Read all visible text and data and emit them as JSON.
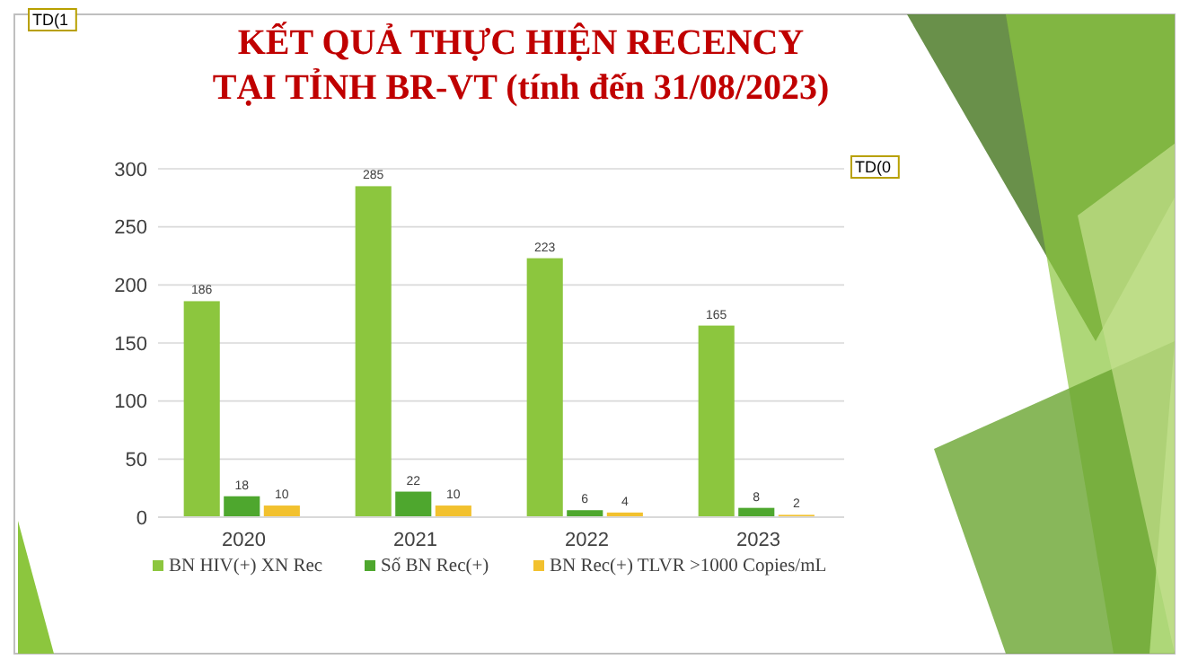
{
  "chart_data": {
    "type": "bar",
    "title": "KẾT QUẢ THỰC HIỆN RECENCY",
    "subtitle": "TẠI TỈNH BR-VT (tính đến 31/08/2023)",
    "categories": [
      "2020",
      "2021",
      "2022",
      "2023"
    ],
    "series": [
      {
        "name": "BN HIV(+) XN Rec",
        "color": "#8cc63e",
        "values": [
          186,
          285,
          223,
          165
        ]
      },
      {
        "name": "Số BN Rec(+)",
        "color": "#4ea72e",
        "values": [
          18,
          22,
          6,
          8
        ]
      },
      {
        "name": "BN Rec(+) TLVR >1000 Copies/mL",
        "color": "#f2c12e",
        "values": [
          10,
          10,
          4,
          2
        ]
      }
    ],
    "ylim": [
      0,
      300
    ],
    "yticks": [
      0,
      50,
      100,
      150,
      200,
      250,
      300
    ],
    "grid": "y",
    "legend": "bottom",
    "data_labels": true,
    "annotations": [
      "TD(1",
      "TD(0"
    ]
  }
}
